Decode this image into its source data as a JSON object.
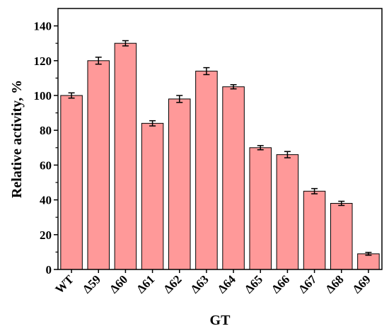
{
  "chart_data": {
    "type": "bar",
    "xlabel": "GT",
    "ylabel": "Relative activity,  %",
    "categories": [
      "WT",
      "Δ59",
      "Δ60",
      "Δ61",
      "Δ62",
      "Δ63",
      "Δ64",
      "Δ65",
      "Δ66",
      "Δ67",
      "Δ68",
      "Δ69"
    ],
    "values": [
      100,
      120,
      130,
      84,
      98,
      114,
      105,
      70,
      66,
      45,
      38,
      9
    ],
    "errors": [
      1.5,
      2,
      1.5,
      1.5,
      2,
      2,
      1.2,
      1.2,
      1.8,
      1.5,
      1.2,
      0.8
    ],
    "ylim": [
      0,
      150
    ],
    "yticks": [
      0,
      20,
      40,
      60,
      80,
      100,
      120,
      140
    ],
    "bar_color": "#ff9999",
    "bar_edge_color": "#000000",
    "grid": false,
    "legend": "none"
  }
}
